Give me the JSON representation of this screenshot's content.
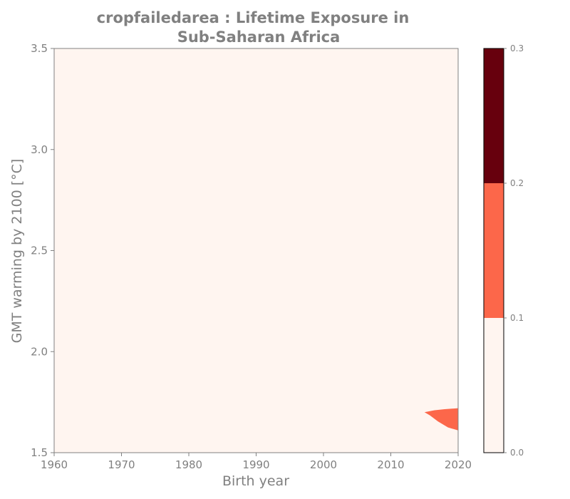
{
  "chart_data": {
    "type": "heatmap",
    "title_line1": "cropfailedarea : Lifetime Exposure in",
    "title_line2": "Sub-Saharan Africa",
    "xlabel": "Birth year",
    "ylabel": "GMT warming by 2100 [°C]",
    "xlim": [
      1960,
      2020
    ],
    "ylim": [
      1.5,
      3.5
    ],
    "x_ticks": [
      "1960",
      "1970",
      "1980",
      "1990",
      "2000",
      "2010",
      "2020"
    ],
    "y_ticks": [
      "1.5",
      "2.0",
      "2.5",
      "3.0",
      "3.5"
    ],
    "levels": [
      0.0,
      0.1,
      0.2,
      0.3
    ],
    "level_colors": [
      "#fff5f0",
      "#fc674a",
      "#67000d"
    ],
    "colorbar_ticks": [
      "0.0",
      "0.1",
      "0.2",
      "0.3"
    ],
    "background_level": 0,
    "regions": [
      {
        "level": 1,
        "boundary": [
          [
            2015.0,
            1.7
          ],
          [
            2016.5,
            1.71
          ],
          [
            2018.0,
            1.715
          ],
          [
            2020.0,
            1.72
          ],
          [
            2020.0,
            1.61
          ],
          [
            2018.5,
            1.625
          ],
          [
            2017.0,
            1.655
          ],
          [
            2015.8,
            1.685
          ]
        ]
      }
    ]
  }
}
